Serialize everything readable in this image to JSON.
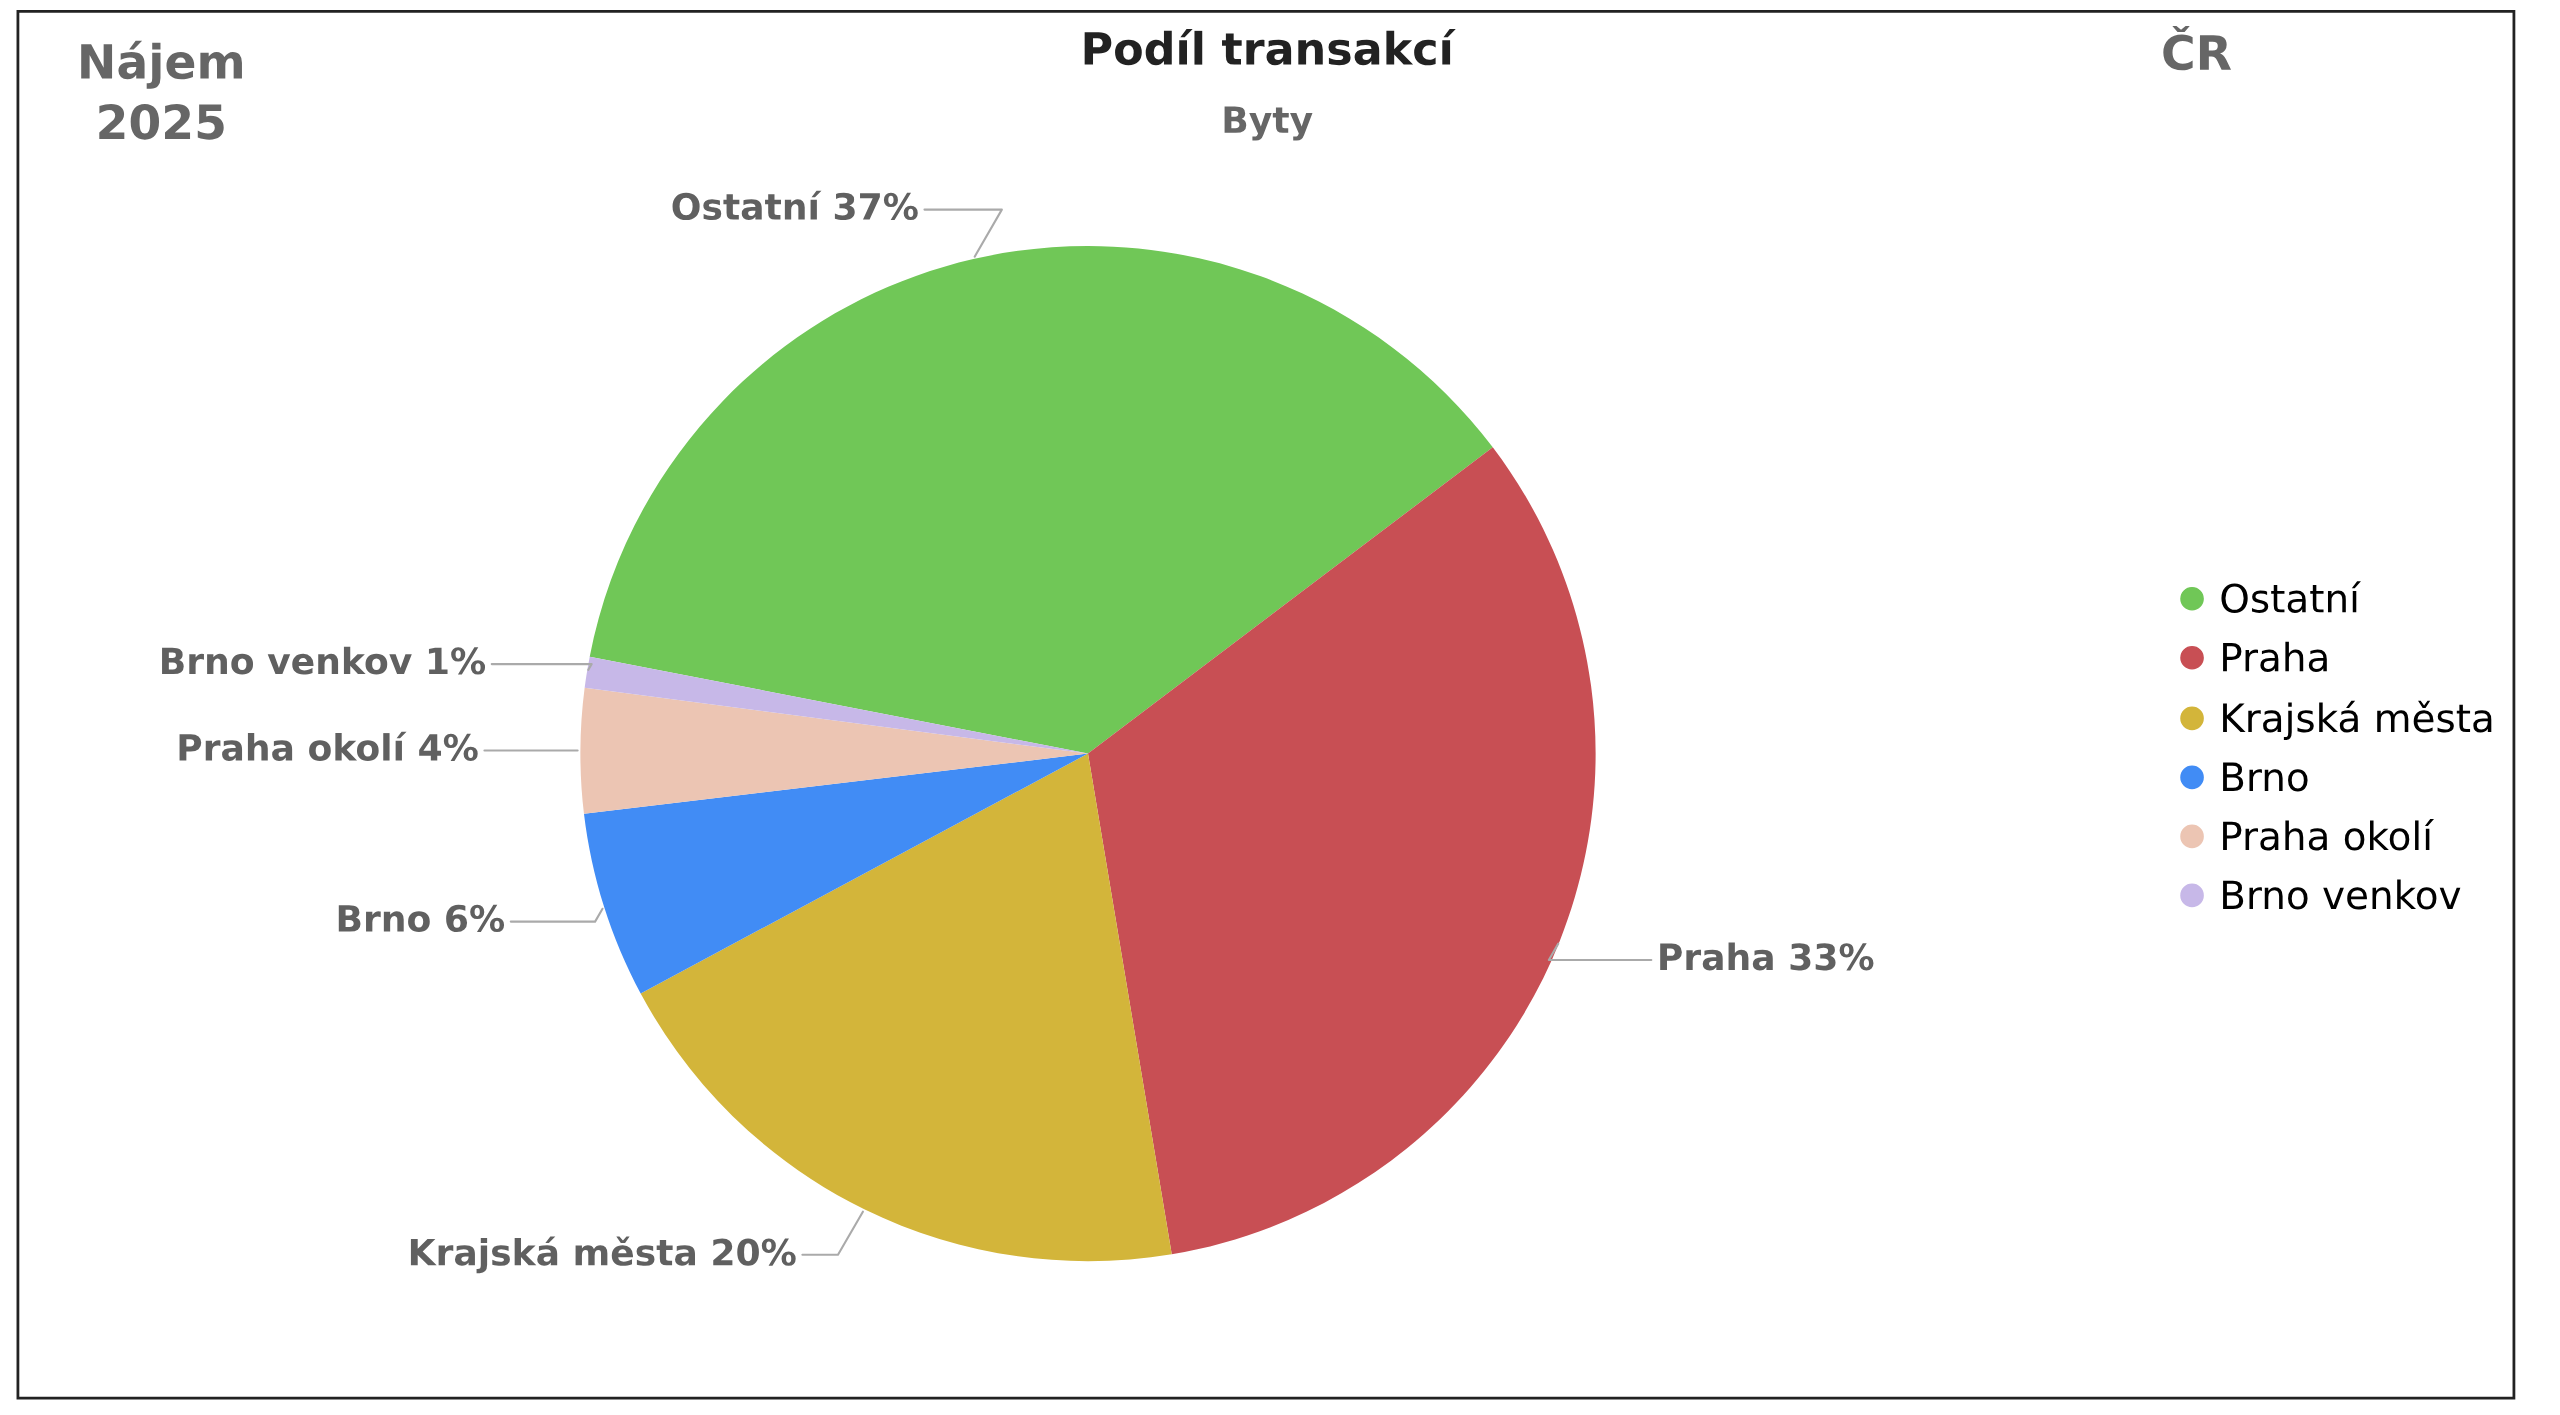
{
  "chart_data": {
    "type": "pie",
    "title": "Podíl transakcí",
    "subtitle": "Byty",
    "annotations": [
      "Nájem\n2025",
      "ČR"
    ],
    "categories": [
      "Ostatní",
      "Praha",
      "Krajská města",
      "Brno",
      "Praha okolí",
      "Brno venkov"
    ],
    "values": [
      37,
      33,
      20,
      6,
      4,
      1
    ],
    "value_labels": [
      "37%",
      "33%",
      "20%",
      "6%",
      "4%",
      "1%"
    ],
    "colors": [
      "#70c757",
      "#c84f54",
      "#d3b53a",
      "#418cf5",
      "#ecc5b3",
      "#c7b8e8"
    ],
    "legend": "right"
  }
}
